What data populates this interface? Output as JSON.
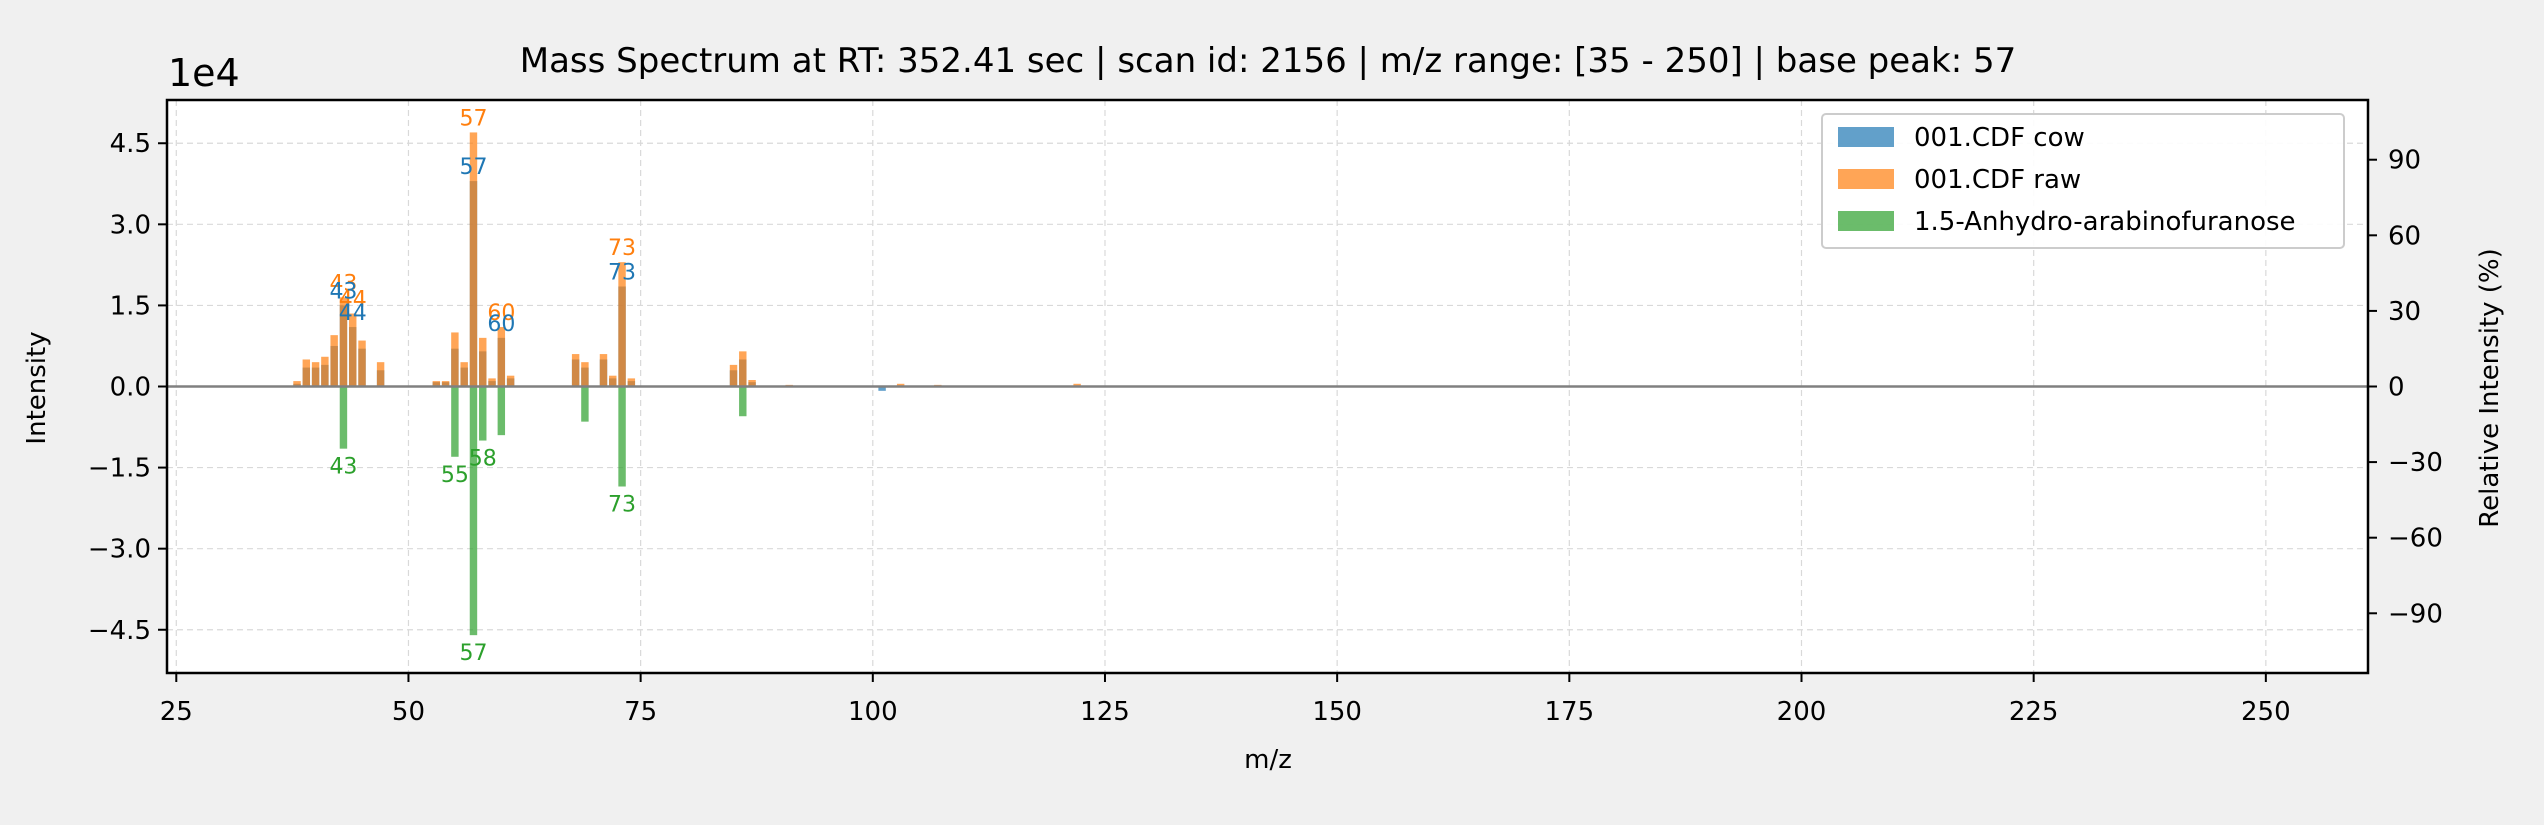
{
  "chart_data": {
    "type": "bar",
    "title": "Mass Spectrum at RT: 352.41 sec | scan id: 2156 | m/z range: [35 - 250] | base peak: 57",
    "xlabel": "m/z",
    "ylabel": "Intensity",
    "ylabel_right": "Relative Intensity (%)",
    "offset_label": "1e4",
    "xlim": [
      24,
      261
    ],
    "ylim": [
      -5.3,
      5.3
    ],
    "ylim_right": [
      -113.7,
      113.7
    ],
    "x_ticks": [
      25,
      50,
      75,
      100,
      125,
      150,
      175,
      200,
      225,
      250
    ],
    "y_ticks": [
      4.5,
      3.0,
      1.5,
      0.0,
      -1.5,
      -3.0,
      -4.5
    ],
    "y_tick_labels": [
      "4.5",
      "3.0",
      "1.5",
      "0.0",
      "−1.5",
      "−3.0",
      "−4.5"
    ],
    "y_right_ticks": [
      90,
      60,
      30,
      0,
      -30,
      -60,
      -90
    ],
    "y_right_tick_labels": [
      "90",
      "60",
      "30",
      "0",
      "−30",
      "−60",
      "−90"
    ],
    "grid": true,
    "legend_position": "top-right",
    "colors": {
      "cow": "#1f77b4",
      "raw": "#ff7f0e",
      "ref": "#2ca02c",
      "zero_line": "#808080"
    },
    "series": [
      {
        "name": "001.CDF cow",
        "key": "cow",
        "x": [
          38,
          39,
          40,
          41,
          42,
          43,
          44,
          45,
          47,
          53,
          54,
          55,
          56,
          57,
          58,
          59,
          60,
          61,
          68,
          69,
          71,
          72,
          73,
          74,
          85,
          86,
          87,
          101
        ],
        "values": [
          0.05,
          0.35,
          0.35,
          0.4,
          0.75,
          1.5,
          1.1,
          0.7,
          0.3,
          0.08,
          0.08,
          0.7,
          0.35,
          3.8,
          0.65,
          0.1,
          0.9,
          0.15,
          0.5,
          0.35,
          0.5,
          0.15,
          1.85,
          0.1,
          0.3,
          0.5,
          0.08,
          -0.08
        ]
      },
      {
        "name": "001.CDF raw",
        "key": "raw",
        "x": [
          38,
          39,
          40,
          41,
          42,
          43,
          44,
          45,
          47,
          53,
          54,
          55,
          56,
          57,
          58,
          59,
          60,
          61,
          68,
          69,
          71,
          72,
          73,
          74,
          85,
          86,
          87,
          91,
          103,
          107,
          122
        ],
        "values": [
          0.1,
          0.5,
          0.45,
          0.55,
          0.95,
          1.65,
          1.35,
          0.85,
          0.45,
          0.1,
          0.1,
          1.0,
          0.45,
          4.7,
          0.9,
          0.15,
          1.1,
          0.2,
          0.6,
          0.45,
          0.6,
          0.2,
          2.3,
          0.15,
          0.4,
          0.65,
          0.12,
          0.03,
          0.05,
          0.03,
          0.05
        ]
      },
      {
        "name": "1.5-Anhydro-arabinofuranose",
        "key": "ref",
        "x": [
          43,
          55,
          57,
          58,
          60,
          69,
          73,
          86
        ],
        "values": [
          -1.15,
          -1.3,
          -4.6,
          -1.0,
          -0.9,
          -0.65,
          -1.85,
          -0.55
        ]
      }
    ],
    "peak_labels": [
      {
        "series": "raw",
        "x": 57,
        "text": "57"
      },
      {
        "series": "raw",
        "x": 43,
        "text": "43"
      },
      {
        "series": "raw",
        "x": 44,
        "text": "44"
      },
      {
        "series": "raw",
        "x": 73,
        "text": "73"
      },
      {
        "series": "raw",
        "x": 60,
        "text": "60"
      },
      {
        "series": "cow",
        "x": 57,
        "text": "57"
      },
      {
        "series": "cow",
        "x": 43,
        "text": "43"
      },
      {
        "series": "cow",
        "x": 44,
        "text": "44"
      },
      {
        "series": "cow",
        "x": 73,
        "text": "73"
      },
      {
        "series": "cow",
        "x": 60,
        "text": "60"
      },
      {
        "series": "ref",
        "x": 43,
        "text": "43"
      },
      {
        "series": "ref",
        "x": 55,
        "text": "55"
      },
      {
        "series": "ref",
        "x": 58,
        "text": "58"
      },
      {
        "series": "ref",
        "x": 57,
        "text": "57"
      },
      {
        "series": "ref",
        "x": 73,
        "text": "73"
      }
    ]
  }
}
